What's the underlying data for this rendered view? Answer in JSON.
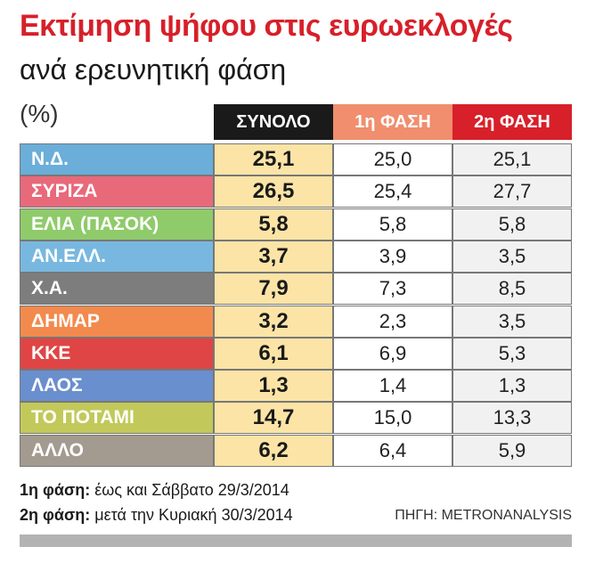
{
  "header": {
    "title": "Εκτίμηση ψήφου στις ευρωεκλογές",
    "subtitle": "ανά ερευνητική φάση",
    "unit": "(%)"
  },
  "chart_data": {
    "type": "table",
    "columns": [
      "ΣΥΝΟΛΟ",
      "1η ΦΑΣΗ",
      "2η ΦΑΣΗ"
    ],
    "column_colors": [
      "#1a1a1a",
      "#f08e6e",
      "#d7202a"
    ],
    "rows": [
      {
        "party": "Ν.Δ.",
        "color": "#6aaed9",
        "total": "25,1",
        "p1": "25,0",
        "p2": "25,1"
      },
      {
        "party": "ΣΥΡΙΖΑ",
        "color": "#e8697a",
        "total": "26,5",
        "p1": "25,4",
        "p2": "27,7"
      },
      {
        "party": "ΕΛΙΑ (ΠΑΣΟΚ)",
        "color": "#8fcb6a",
        "total": "5,8",
        "p1": "5,8",
        "p2": "5,8"
      },
      {
        "party": "ΑΝ.ΕΛΛ.",
        "color": "#78b8e0",
        "total": "3,7",
        "p1": "3,9",
        "p2": "3,5"
      },
      {
        "party": "Χ.Α.",
        "color": "#7d7d7d",
        "total": "7,9",
        "p1": "7,3",
        "p2": "8,5"
      },
      {
        "party": "ΔΗΜΑΡ",
        "color": "#f28a4e",
        "total": "3,2",
        "p1": "2,3",
        "p2": "3,5"
      },
      {
        "party": "ΚΚΕ",
        "color": "#e04545",
        "total": "6,1",
        "p1": "6,9",
        "p2": "5,3"
      },
      {
        "party": "ΛΑΟΣ",
        "color": "#6a8fce",
        "total": "1,3",
        "p1": "1,4",
        "p2": "1,3"
      },
      {
        "party": "ΤΟ ΠΟΤΑΜΙ",
        "color": "#c2c95a",
        "total": "14,7",
        "p1": "15,0",
        "p2": "13,3"
      },
      {
        "party": "ΑΛΛΟ",
        "color": "#a39b90",
        "total": "6,2",
        "p1": "6,4",
        "p2": "5,9"
      }
    ]
  },
  "notes": {
    "phase1_label": "1η φάση:",
    "phase1_text": "έως και Σάββατο 29/3/2014",
    "phase2_label": "2η φάση:",
    "phase2_text": "μετά την Κυριακή 30/3/2014"
  },
  "source": "ΠΗΓΗ: METRONANALYSIS"
}
